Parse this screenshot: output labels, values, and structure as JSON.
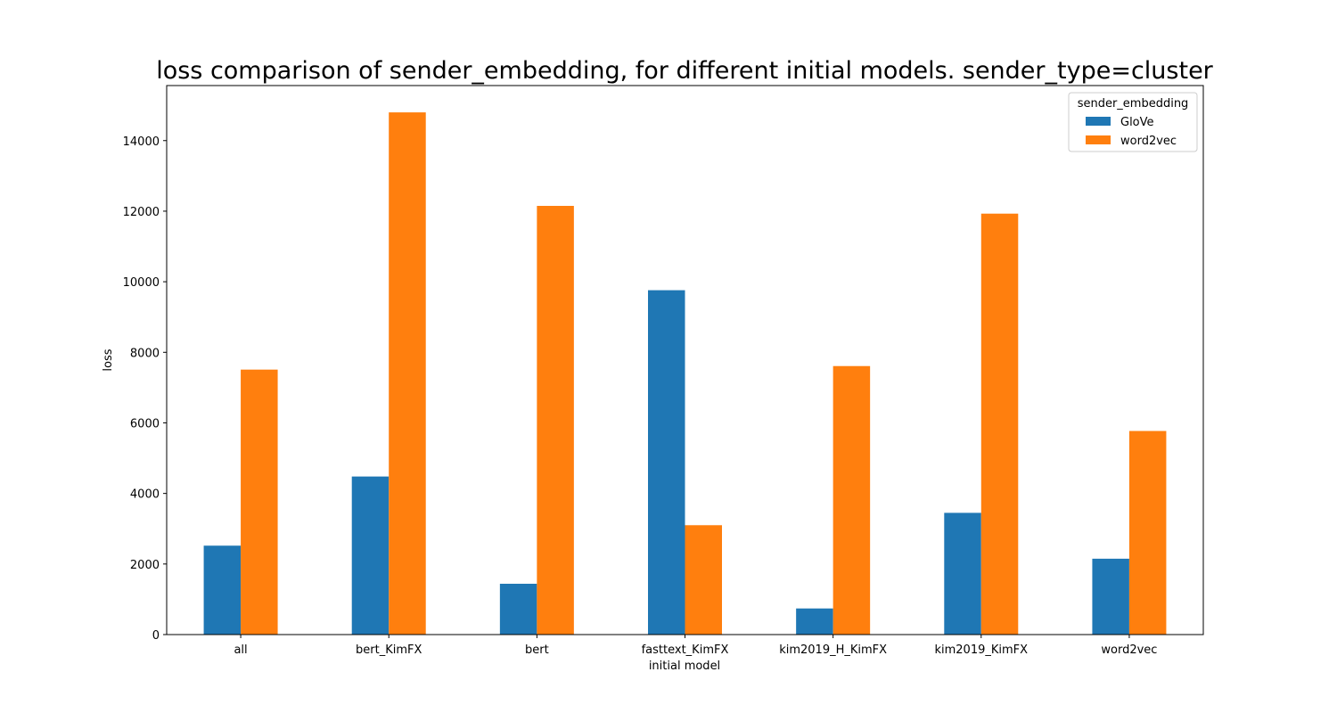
{
  "chart_data": {
    "type": "bar",
    "title": "loss comparison of sender_embedding, for different initial models. sender_type=cluster",
    "xlabel": "initial model",
    "ylabel": "loss",
    "categories": [
      "all",
      "bert_KimFX",
      "bert",
      "fasttext_KimFX",
      "kim2019_H_KimFX",
      "kim2019_KimFX",
      "word2vec"
    ],
    "series": [
      {
        "name": "GloVe",
        "color": "#1f77b4",
        "values": [
          2520,
          4480,
          1440,
          9760,
          740,
          3450,
          2150
        ]
      },
      {
        "name": "word2vec",
        "color": "#ff7f0e",
        "values": [
          7510,
          14800,
          12150,
          3100,
          7610,
          11930,
          5770
        ]
      }
    ],
    "ylim": [
      0,
      15560
    ],
    "yticks": [
      0,
      2000,
      4000,
      6000,
      8000,
      10000,
      12000,
      14000
    ],
    "legend": {
      "title": "sender_embedding",
      "placement": "top-right"
    },
    "grid": false
  }
}
